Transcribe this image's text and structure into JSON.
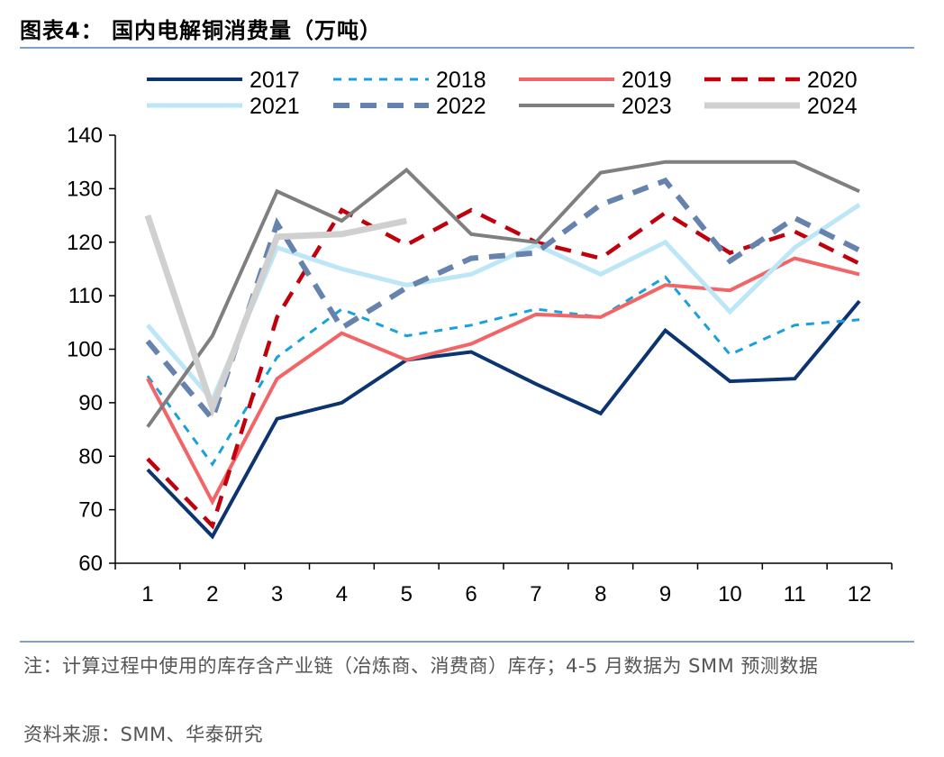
{
  "title": "图表4：  国内电解铜消费量（万吨）",
  "note": "注：计算过程中使用的库存含产业链（冶炼商、消费商）库存；4-5 月数据为 SMM 预测数据",
  "source": "资料来源：SMM、华泰研究",
  "chart_data": {
    "type": "line",
    "title": "国内电解铜消费量（万吨）",
    "xlabel": "",
    "ylabel": "",
    "categories": [
      "1",
      "2",
      "3",
      "4",
      "5",
      "6",
      "7",
      "8",
      "9",
      "10",
      "11",
      "12"
    ],
    "ylim": [
      60,
      140
    ],
    "yticks": [
      60,
      70,
      80,
      90,
      100,
      110,
      120,
      130,
      140
    ],
    "grid": false,
    "legend_position": "top",
    "series": [
      {
        "name": "2017",
        "color": "#0b3470",
        "dash": "solid",
        "values": [
          77.5,
          65,
          87,
          90,
          98,
          99.5,
          93.5,
          88,
          103.5,
          94,
          94.5,
          109
        ]
      },
      {
        "name": "2018",
        "color": "#1aa0dc",
        "dash": "dashed",
        "values": [
          95,
          78.5,
          98.5,
          107.5,
          102.5,
          104.5,
          107.5,
          106,
          113.5,
          99,
          104.5,
          105.5
        ]
      },
      {
        "name": "2019",
        "color": "#f26465",
        "dash": "solid",
        "values": [
          94.5,
          71.5,
          94.5,
          103,
          98,
          101,
          106.5,
          106,
          112,
          111,
          117,
          114
        ]
      },
      {
        "name": "2020",
        "color": "#c0000c",
        "dash": "dashed",
        "values": [
          79.5,
          67,
          106,
          126,
          119.5,
          126,
          120,
          117,
          125.5,
          118,
          122,
          116
        ]
      },
      {
        "name": "2021",
        "color": "#bde6f6",
        "dash": "solid",
        "values": [
          104.5,
          90.5,
          119,
          115,
          112,
          114,
          119.5,
          114,
          120,
          107,
          119,
          127
        ]
      },
      {
        "name": "2022",
        "color": "#6683ad",
        "dash": "dashed",
        "values": [
          101.5,
          87,
          123.5,
          104,
          111.5,
          117,
          118,
          127,
          131.5,
          116.5,
          124.5,
          118.5
        ]
      },
      {
        "name": "2023",
        "color": "#7f7f7f",
        "dash": "solid",
        "values": [
          85.5,
          102.5,
          129.5,
          124,
          133.5,
          121.5,
          120,
          133,
          135,
          135,
          135,
          129.5
        ]
      },
      {
        "name": "2024",
        "color": "#d0d0d0",
        "dash": "solid",
        "values": [
          125,
          89,
          121,
          121.5,
          124,
          null,
          null,
          null,
          null,
          null,
          null,
          null
        ]
      }
    ]
  }
}
